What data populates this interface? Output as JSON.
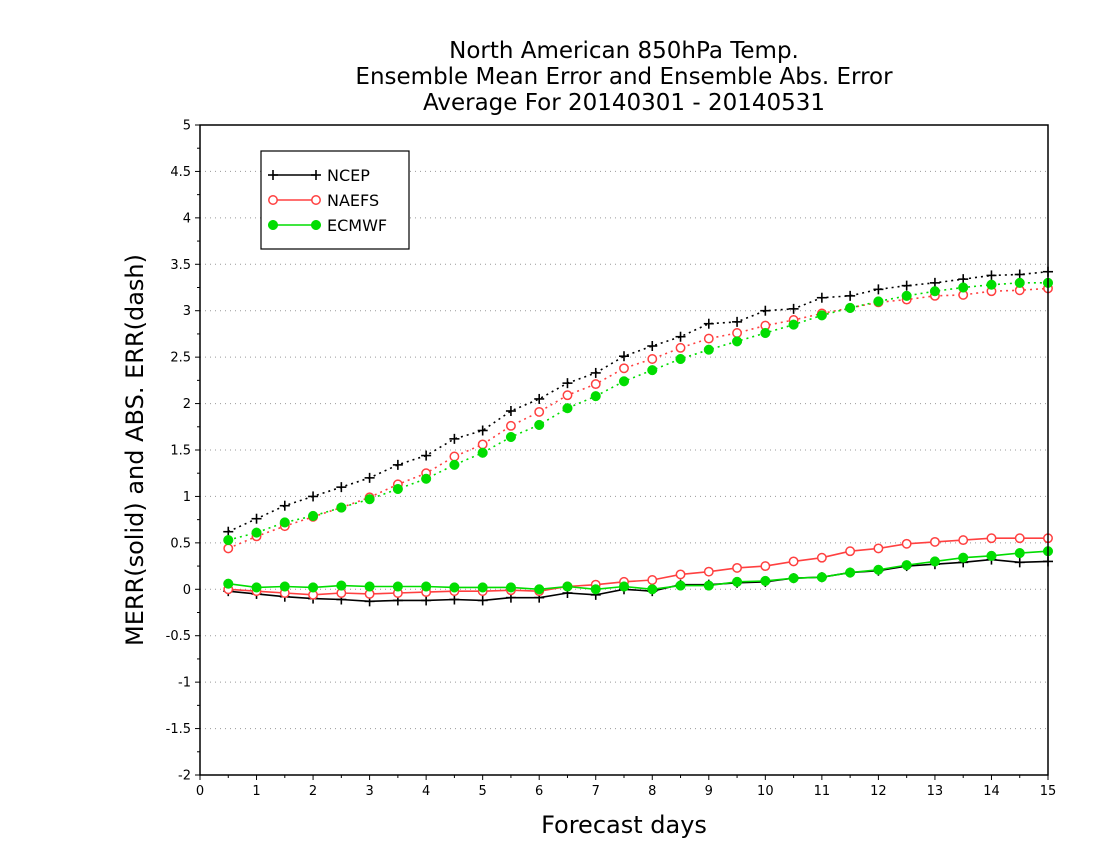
{
  "chart_data": {
    "type": "line",
    "title_lines": [
      "North American 850hPa Temp.",
      "Ensemble Mean Error and Ensemble Abs. Error",
      "Average For 20140301 - 20140531"
    ],
    "xlabel": "Forecast days",
    "ylabel": "MERR(solid) and ABS. ERR(dash)",
    "xlim": [
      0,
      15
    ],
    "ylim": [
      -2,
      5
    ],
    "xticks": [
      "0",
      "1",
      "2",
      "3",
      "4",
      "5",
      "6",
      "7",
      "8",
      "9",
      "10",
      "11",
      "12",
      "13",
      "14",
      "15"
    ],
    "yticks": [
      "-2",
      "-1.5",
      "-1",
      "-0.5",
      "0",
      "0.5",
      "1",
      "1.5",
      "2",
      "2.5",
      "3",
      "3.5",
      "4",
      "4.5",
      "5"
    ],
    "grid": "horizontal dotted",
    "legend_position": "top-left",
    "x": [
      0.5,
      1,
      1.5,
      2,
      2.5,
      3,
      3.5,
      4,
      4.5,
      5,
      5.5,
      6,
      6.5,
      7,
      7.5,
      8,
      8.5,
      9,
      9.5,
      10,
      10.5,
      11,
      11.5,
      12,
      12.5,
      13,
      13.5,
      14,
      14.5,
      15
    ],
    "series": [
      {
        "name": "NCEP",
        "color": "#000000",
        "marker": "plus",
        "merr": [
          -0.02,
          -0.05,
          -0.08,
          -0.1,
          -0.11,
          -0.13,
          -0.12,
          -0.12,
          -0.11,
          -0.12,
          -0.09,
          -0.09,
          -0.04,
          -0.06,
          0.0,
          -0.02,
          0.05,
          0.05,
          0.07,
          0.08,
          0.12,
          0.13,
          0.18,
          0.2,
          0.25,
          0.27,
          0.29,
          0.32,
          0.29,
          0.3
        ],
        "abs_err": [
          0.62,
          0.76,
          0.9,
          1.0,
          1.1,
          1.2,
          1.34,
          1.44,
          1.62,
          1.71,
          1.92,
          2.05,
          2.22,
          2.33,
          2.51,
          2.62,
          2.72,
          2.86,
          2.88,
          3.0,
          3.02,
          3.14,
          3.16,
          3.23,
          3.27,
          3.3,
          3.34,
          3.38,
          3.39,
          3.42
        ]
      },
      {
        "name": "NAEFS",
        "color": "#ff4040",
        "marker": "open-circle",
        "merr": [
          0.0,
          -0.02,
          -0.04,
          -0.06,
          -0.04,
          -0.05,
          -0.04,
          -0.03,
          -0.02,
          -0.02,
          -0.01,
          -0.02,
          0.03,
          0.05,
          0.08,
          0.1,
          0.16,
          0.19,
          0.23,
          0.25,
          0.3,
          0.34,
          0.41,
          0.44,
          0.49,
          0.51,
          0.53,
          0.55,
          0.55,
          0.55
        ],
        "abs_err": [
          0.44,
          0.57,
          0.68,
          0.78,
          0.88,
          0.99,
          1.13,
          1.25,
          1.43,
          1.56,
          1.76,
          1.91,
          2.09,
          2.21,
          2.38,
          2.48,
          2.6,
          2.7,
          2.76,
          2.84,
          2.9,
          2.97,
          3.03,
          3.09,
          3.12,
          3.16,
          3.17,
          3.21,
          3.22,
          3.24
        ]
      },
      {
        "name": "ECMWF",
        "color": "#00dd00",
        "marker": "filled-circle",
        "merr": [
          0.06,
          0.02,
          0.03,
          0.02,
          0.04,
          0.03,
          0.03,
          0.03,
          0.02,
          0.02,
          0.02,
          0.0,
          0.03,
          0.0,
          0.03,
          0.0,
          0.04,
          0.04,
          0.08,
          0.09,
          0.12,
          0.13,
          0.18,
          0.21,
          0.26,
          0.3,
          0.34,
          0.36,
          0.39,
          0.41
        ],
        "abs_err": [
          0.53,
          0.61,
          0.72,
          0.79,
          0.88,
          0.97,
          1.08,
          1.19,
          1.34,
          1.47,
          1.64,
          1.77,
          1.95,
          2.08,
          2.24,
          2.36,
          2.48,
          2.58,
          2.67,
          2.76,
          2.85,
          2.95,
          3.03,
          3.1,
          3.16,
          3.21,
          3.25,
          3.28,
          3.3,
          3.3
        ]
      }
    ]
  }
}
